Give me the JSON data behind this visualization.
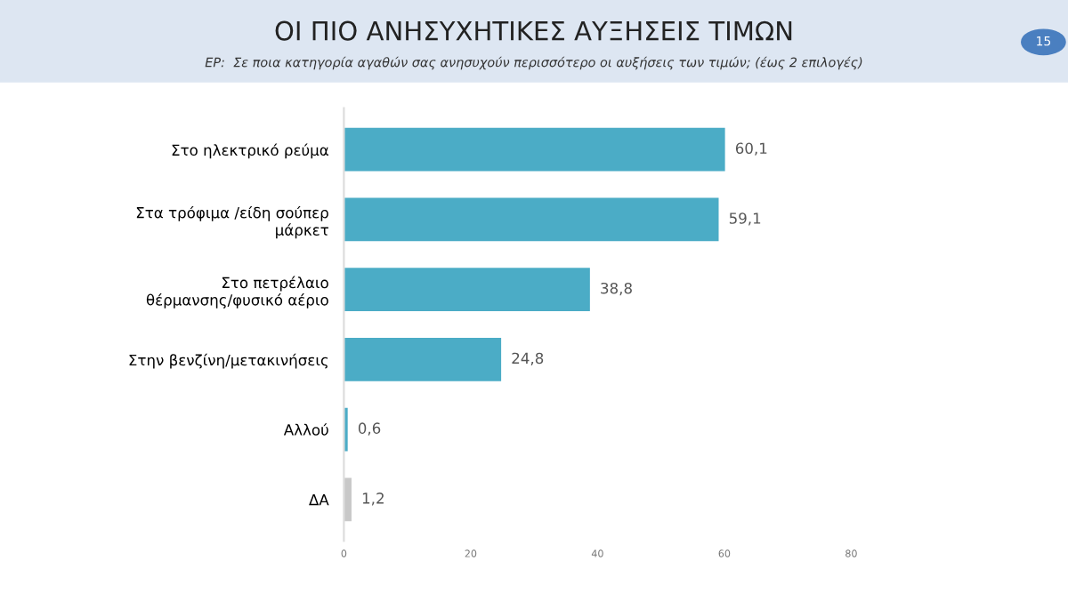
{
  "chart_data": {
    "type": "bar",
    "orientation": "horizontal",
    "title": "ΟΙ ΠΙΟ ΑΝΗΣΥΧΗΤΙΚΕΣ ΑΥΞΗΣΕΙΣ ΤΙΜΩΝ",
    "subtitle": "ΕΡ:  Σε ποια κατηγορία αγαθών σας ανησυχούν περισσότερο οι αυξήσεις των τιμών; (έως 2 επιλογές)",
    "annotations": [
      "15"
    ],
    "categories": [
      "Στο ηλεκτρικό ρεύμα",
      "Στα τρόφιμα /είδη σούπερ\nμάρκετ",
      "Στο πετρέλαιο\nθέρμανσης/φυσικό αέριο",
      "Στην βενζίνη/μετακινήσεις",
      "Αλλού",
      "ΔΑ"
    ],
    "values": [
      60.1,
      59.1,
      38.8,
      24.8,
      0.6,
      1.2
    ],
    "value_labels": [
      "60,1",
      "59,1",
      "38,8",
      "24,8",
      "0,6",
      "1,2"
    ],
    "colors": [
      "#4bacc6",
      "#4bacc6",
      "#4bacc6",
      "#4bacc6",
      "#4bacc6",
      "#c8c8c8"
    ],
    "xlim": [
      0,
      80
    ],
    "xticks": [
      0,
      20,
      40,
      60,
      80
    ],
    "grid": false,
    "legend": false
  }
}
